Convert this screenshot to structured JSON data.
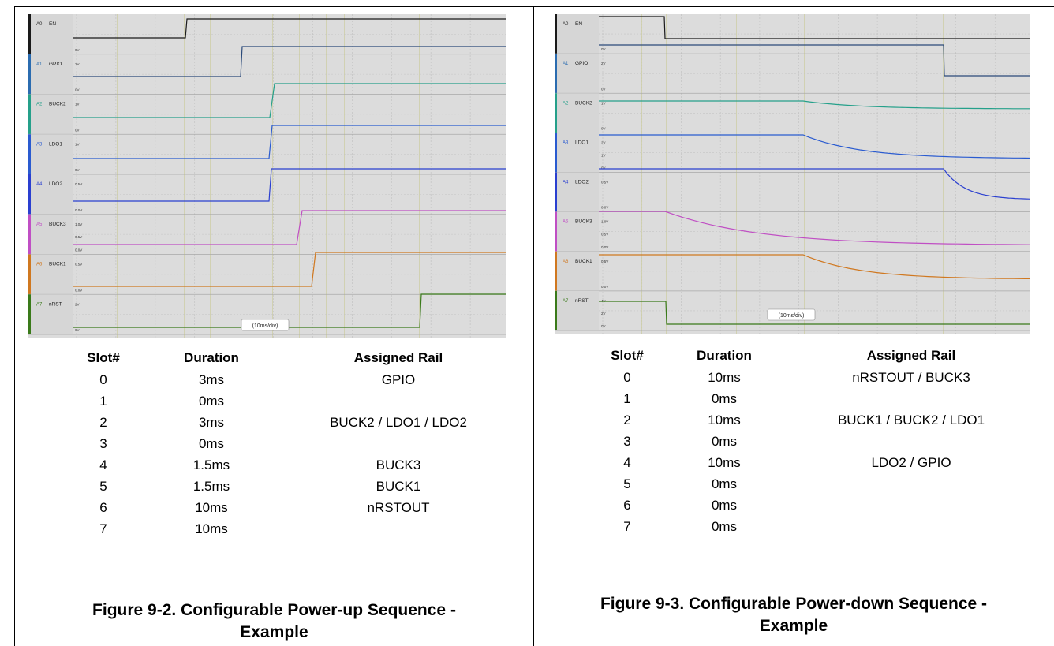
{
  "panels": [
    {
      "id": "power-up",
      "scope": {
        "timebase": "(10ms/div)",
        "channels": [
          {
            "id": "A0",
            "name": "EN",
            "color": "#1a1a1a",
            "accent": "#1a1a1a",
            "ticks": [
              "",
              "0V"
            ]
          },
          {
            "id": "A1",
            "name": "GPIO",
            "color": "#2b4a7a",
            "accent": "#2b6cb0",
            "ticks": [
              "2V",
              "0V"
            ]
          },
          {
            "id": "A2",
            "name": "BUCK2",
            "color": "#25a08a",
            "accent": "#25a08a",
            "ticks": [
              "1V",
              "0V"
            ]
          },
          {
            "id": "A3",
            "name": "LDO1",
            "color": "#2a5bd0",
            "accent": "#2a5bd0",
            "ticks": [
              "1V",
              "0V"
            ]
          },
          {
            "id": "A4",
            "name": "LDO2",
            "color": "#2a3fd0",
            "accent": "#2a3fd0",
            "ticks": [
              "0.5V",
              "0.0V"
            ]
          },
          {
            "id": "A5",
            "name": "BUCK3",
            "color": "#c04fc4",
            "accent": "#c04fc4",
            "ticks": [
              "1.0V",
              "0.5V",
              "0.0V"
            ]
          },
          {
            "id": "A6",
            "name": "BUCK1",
            "color": "#d07820",
            "accent": "#d07820",
            "ticks": [
              "0.5V",
              "0.0V"
            ]
          },
          {
            "id": "A7",
            "name": "nRST",
            "color": "#3a7a1a",
            "accent": "#3a7a1a",
            "ticks": [
              "2V",
              "0V"
            ]
          }
        ]
      },
      "table": {
        "headers": [
          "Slot#",
          "Duration",
          "Assigned Rail"
        ],
        "rows": [
          [
            "0",
            "3ms",
            "GPIO"
          ],
          [
            "1",
            "0ms",
            ""
          ],
          [
            "2",
            "3ms",
            "BUCK2 / LDO1 / LDO2"
          ],
          [
            "3",
            "0ms",
            ""
          ],
          [
            "4",
            "1.5ms",
            "BUCK3"
          ],
          [
            "5",
            "1.5ms",
            "BUCK1"
          ],
          [
            "6",
            "10ms",
            "nRSTOUT"
          ],
          [
            "7",
            "10ms",
            ""
          ]
        ]
      },
      "caption_line1": "Figure 9-2. Configurable Power-up Sequence -",
      "caption_line2": "Example"
    },
    {
      "id": "power-down",
      "scope": {
        "timebase": "(10ms/div)",
        "channels": [
          {
            "id": "A0",
            "name": "EN",
            "color": "#1a1a1a",
            "accent": "#1a1a1a",
            "ticks": [
              "",
              "0V"
            ]
          },
          {
            "id": "A1",
            "name": "GPIO",
            "color": "#2b4a7a",
            "accent": "#2b6cb0",
            "ticks": [
              "2V",
              "0V"
            ]
          },
          {
            "id": "A2",
            "name": "BUCK2",
            "color": "#25a08a",
            "accent": "#25a08a",
            "ticks": [
              "1V",
              "0V"
            ]
          },
          {
            "id": "A3",
            "name": "LDO1",
            "color": "#2a5bd0",
            "accent": "#2a5bd0",
            "ticks": [
              "2V",
              "1V",
              "0V"
            ]
          },
          {
            "id": "A4",
            "name": "LDO2",
            "color": "#2a3fd0",
            "accent": "#2a3fd0",
            "ticks": [
              "0.5V",
              "0.0V"
            ]
          },
          {
            "id": "A5",
            "name": "BUCK3",
            "color": "#c04fc4",
            "accent": "#c04fc4",
            "ticks": [
              "1.0V",
              "0.5V",
              "0.0V"
            ]
          },
          {
            "id": "A6",
            "name": "BUCK1",
            "color": "#d07820",
            "accent": "#d07820",
            "ticks": [
              "0.5V",
              "0.0V"
            ]
          },
          {
            "id": "A7",
            "name": "nRST",
            "color": "#3a7a1a",
            "accent": "#3a7a1a",
            "ticks": [
              "4V",
              "2V",
              "0V"
            ]
          }
        ]
      },
      "table": {
        "headers": [
          "Slot#",
          "Duration",
          "Assigned Rail"
        ],
        "rows": [
          [
            "0",
            "10ms",
            "nRSTOUT / BUCK3"
          ],
          [
            "1",
            "0ms",
            ""
          ],
          [
            "2",
            "10ms",
            "BUCK1 / BUCK2 / LDO1"
          ],
          [
            "3",
            "0ms",
            ""
          ],
          [
            "4",
            "10ms",
            "LDO2 / GPIO"
          ],
          [
            "5",
            "0ms",
            ""
          ],
          [
            "6",
            "0ms",
            ""
          ],
          [
            "7",
            "0ms",
            ""
          ]
        ]
      },
      "caption_line1": "Figure 9-3. Configurable Power-down Sequence -",
      "caption_line2": "Example"
    }
  ]
}
